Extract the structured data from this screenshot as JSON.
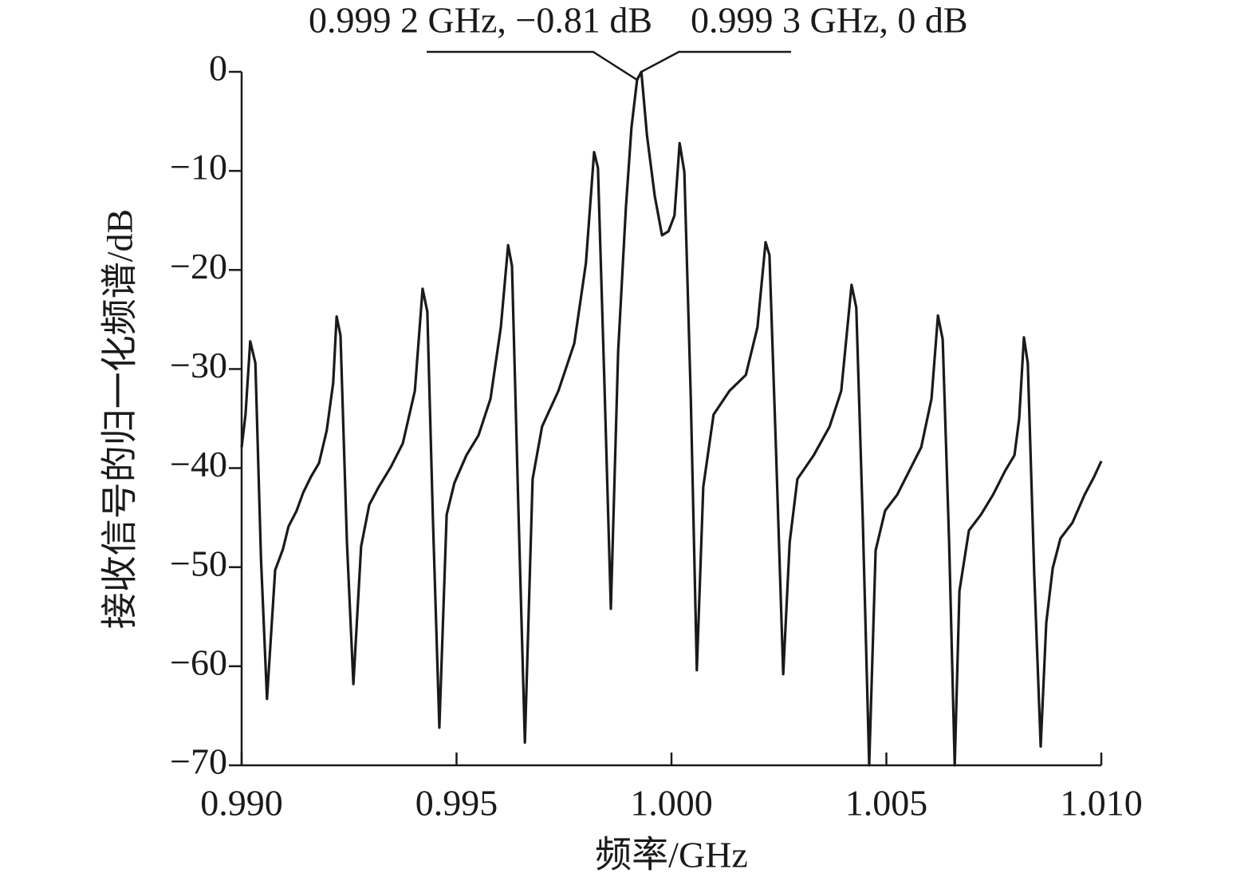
{
  "chart_data": {
    "type": "line",
    "xlabel": "频率/GHz",
    "ylabel": "接收信号的归一化频谱/dB",
    "annotations": [
      {
        "text": "0.999 2 GHz, −0.81 dB",
        "x": 0.9992,
        "y": -0.81
      },
      {
        "text": "0.999 3 GHz, 0 dB",
        "x": 0.9993,
        "y": 0
      }
    ],
    "color": "#1a1a1a",
    "x": [
      0.99,
      0.99009,
      0.9902,
      0.99032,
      0.99045,
      0.99059,
      0.99078,
      0.99096,
      0.99109,
      0.99128,
      0.99143,
      0.99161,
      0.9918,
      0.99198,
      0.99213,
      0.99221,
      0.9923,
      0.99245,
      0.9926,
      0.99278,
      0.99297,
      0.99319,
      0.99347,
      0.99375,
      0.99403,
      0.99421,
      0.99432,
      0.99445,
      0.9946,
      0.99477,
      0.99495,
      0.99523,
      0.99551,
      0.99579,
      0.99603,
      0.9962,
      0.99629,
      0.99644,
      0.99659,
      0.99677,
      0.99699,
      0.99737,
      0.99774,
      0.99801,
      0.9982,
      0.99829,
      0.99844,
      0.99859,
      0.99876,
      0.99894,
      0.99907,
      0.9992,
      0.9993,
      0.99943,
      0.99961,
      0.99978,
      0.99993,
      1.00007,
      1.00019,
      1.0003,
      1.00045,
      1.00059,
      1.00074,
      1.00098,
      1.00135,
      1.00173,
      1.002,
      1.00219,
      1.00228,
      1.00243,
      1.0026,
      1.00275,
      1.00293,
      1.00331,
      1.00368,
      1.00395,
      1.00419,
      1.0043,
      1.00445,
      1.0046,
      1.00475,
      1.00497,
      1.00525,
      1.00553,
      1.00581,
      1.00605,
      1.0062,
      1.00631,
      1.00646,
      1.00659,
      1.0067,
      1.00692,
      1.0072,
      1.00748,
      1.00776,
      1.00798,
      1.00809,
      1.0082,
      1.00829,
      1.00844,
      1.00859,
      1.00872,
      1.00887,
      1.00905,
      1.00933,
      1.00961,
      1.00983,
      1.01
    ],
    "values": [
      -37.9,
      -34.6,
      -27.2,
      -29.4,
      -49.1,
      -63.3,
      -50.3,
      -48.2,
      -45.9,
      -44.3,
      -42.5,
      -40.9,
      -39.5,
      -36.2,
      -31.4,
      -24.7,
      -26.6,
      -47.5,
      -61.8,
      -47.9,
      -43.7,
      -41.9,
      -39.9,
      -37.5,
      -32.2,
      -21.9,
      -24.2,
      -45.1,
      -66.2,
      -44.7,
      -41.5,
      -38.7,
      -36.7,
      -33.0,
      -25.8,
      -17.5,
      -19.6,
      -44.3,
      -67.7,
      -41.1,
      -35.8,
      -32.2,
      -27.4,
      -19.3,
      -8.1,
      -9.7,
      -31.4,
      -54.2,
      -28.2,
      -13.7,
      -5.6,
      -0.81,
      0,
      -6.4,
      -12.5,
      -16.5,
      -16.1,
      -14.5,
      -7.2,
      -10.1,
      -33.0,
      -60.4,
      -41.9,
      -34.6,
      -32.2,
      -30.6,
      -25.8,
      -17.2,
      -18.5,
      -37.9,
      -60.8,
      -47.5,
      -41.1,
      -38.7,
      -35.8,
      -32.2,
      -21.5,
      -23.8,
      -45.1,
      -70,
      -48.3,
      -44.3,
      -42.7,
      -40.3,
      -37.9,
      -33.0,
      -24.6,
      -27.0,
      -47.5,
      -70,
      -52.4,
      -46.3,
      -44.7,
      -42.7,
      -40.3,
      -38.7,
      -35.0,
      -26.8,
      -29.4,
      -50.7,
      -68.1,
      -55.6,
      -50.1,
      -47.1,
      -45.5,
      -42.7,
      -40.9,
      -39.3
    ],
    "xlim": [
      0.99,
      1.01
    ],
    "ylim": [
      -70,
      0
    ],
    "xticks": [
      {
        "value": 0.99,
        "label": "0.990"
      },
      0.995,
      {
        "value": 1,
        "label": "1.000"
      },
      1.005,
      {
        "value": 1.01,
        "label": "1.010"
      }
    ],
    "yticks": [
      0,
      {
        "value": -10,
        "label": "−10"
      },
      {
        "value": -20,
        "label": "−20"
      },
      {
        "value": -30,
        "label": "−30"
      },
      {
        "value": -40,
        "label": "−40"
      },
      {
        "value": -50,
        "label": "−50"
      },
      {
        "value": -60,
        "label": "−60"
      },
      {
        "value": -70,
        "label": "−70"
      }
    ]
  }
}
